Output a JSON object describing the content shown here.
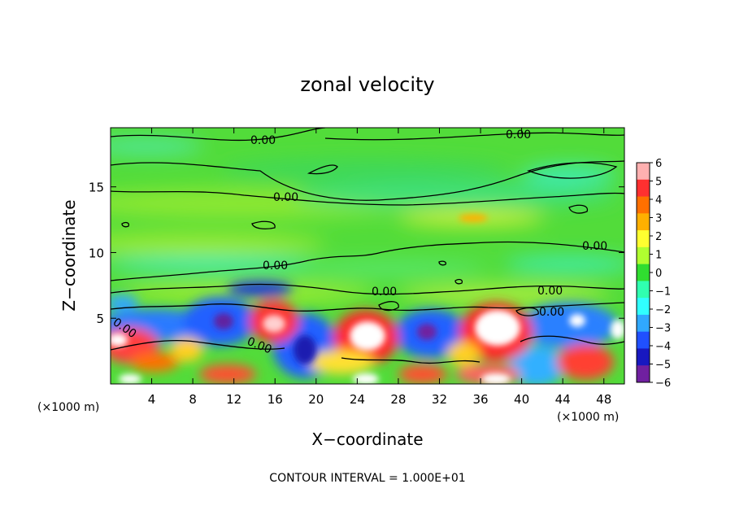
{
  "chart_data": {
    "type": "heatmap",
    "title": "zonal velocity",
    "xlabel": "X−coordinate",
    "ylabel": "Z−coordinate",
    "x_unit": "(×1000 m)",
    "z_unit": "(×1000 m)",
    "x_ticks": [
      4,
      8,
      12,
      16,
      20,
      24,
      28,
      32,
      36,
      40,
      44,
      48
    ],
    "x_tick_labels": [
      "4",
      "8",
      "12",
      "16",
      "20",
      "24",
      "28",
      "32",
      "36",
      "40",
      "44",
      "48"
    ],
    "y_ticks": [
      5,
      10,
      15
    ],
    "y_tick_labels": [
      "5",
      "10",
      "15"
    ],
    "xlim": [
      0,
      50
    ],
    "ylim": [
      0,
      19.5
    ],
    "colorbar": {
      "ticks": [
        6,
        5,
        4,
        3,
        2,
        1,
        0,
        -1,
        -2,
        -3,
        -4,
        -5,
        -6
      ],
      "tick_labels": [
        "6",
        "5",
        "4",
        "3",
        "2",
        "1",
        "0",
        "−1",
        "−2",
        "−3",
        "−4",
        "−5",
        "−6"
      ],
      "colors": [
        "#ffb0b0",
        "#ff3030",
        "#ff7000",
        "#ffb000",
        "#ffff30",
        "#b0ff30",
        "#30dd30",
        "#30ffb0",
        "#30ffff",
        "#30a8ff",
        "#2050ff",
        "#1818c0",
        "#7020a0"
      ],
      "range": [
        -6,
        6
      ]
    },
    "contour_labels": [
      "0.00",
      "0.00",
      "0.00",
      "0.00",
      "0.00",
      "0.00",
      "0.00",
      "0.00",
      "0.00",
      "0.00"
    ],
    "contour_interval_text": "CONTOUR INTERVAL = 1.000E+01",
    "features": [
      {
        "x": 25,
        "z": 4.2,
        "value": 6
      },
      {
        "x": 37.5,
        "z": 4.2,
        "value": 6
      },
      {
        "x": 15.5,
        "z": 4.8,
        "value": 5
      },
      {
        "x": 10.5,
        "z": 5.0,
        "value": -4
      },
      {
        "x": 5,
        "z": 4.5,
        "value": -3
      },
      {
        "x": 30.5,
        "z": 4.5,
        "value": -4
      },
      {
        "x": 45.5,
        "z": 5.0,
        "value": -3
      },
      {
        "x": 19,
        "z": 2.5,
        "value": -4
      },
      {
        "x": 1.5,
        "z": 3.5,
        "value": 4
      },
      {
        "x": 4,
        "z": 2.0,
        "value": 3
      },
      {
        "x": 46,
        "z": 1.8,
        "value": 4
      },
      {
        "x": 35,
        "z": 12.8,
        "value": 3
      },
      {
        "x": 14.5,
        "z": 7.2,
        "value": -3
      },
      {
        "x": 42,
        "z": 2.5,
        "value": -2
      }
    ]
  }
}
